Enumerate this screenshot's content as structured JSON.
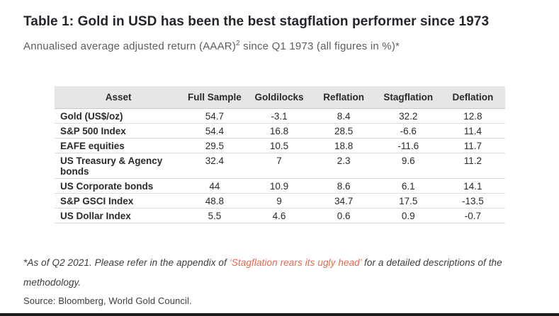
{
  "page": {
    "title": "Table 1: Gold in USD has been the best stagflation performer since 1973",
    "subtitle_pre": "Annualised average adjusted return (AAAR)",
    "subtitle_sup": "2",
    "subtitle_post": " since Q1 1973 (all figures in %)*",
    "footnote_pre": "*As of Q2 2021. Please refer in the appendix of ",
    "footnote_link": "‘Stagflation rears its ugly head’",
    "footnote_post": " for a detailed descriptions of the methodology.",
    "source": "Source: Bloomberg, World Gold Council."
  },
  "chart_data": {
    "type": "table",
    "title": "Table 1: Gold in USD has been the best stagflation performer since 1973",
    "subtitle": "Annualised average adjusted return (AAAR)2 since Q1 1973 (all figures in %)*",
    "columns": [
      "Asset",
      "Full Sample",
      "Goldilocks",
      "Reflation",
      "Stagflation",
      "Deflation"
    ],
    "rows": [
      {
        "asset": "Gold (US$/oz)",
        "values": [
          "54.7",
          "-3.1",
          "8.4",
          "32.2",
          "12.8"
        ]
      },
      {
        "asset": "S&P 500 Index",
        "values": [
          "54.4",
          "16.8",
          "28.5",
          "-6.6",
          "11.4"
        ]
      },
      {
        "asset": "EAFE equities",
        "values": [
          "29.5",
          "10.5",
          "18.8",
          "-11.6",
          "11.7"
        ]
      },
      {
        "asset": "US Treasury & Agency bonds",
        "values": [
          "32.4",
          "7",
          "2.3",
          "9.6",
          "11.2"
        ]
      },
      {
        "asset": "US Corporate bonds",
        "values": [
          "44",
          "10.9",
          "8.6",
          "6.1",
          "14.1"
        ]
      },
      {
        "asset": "S&P GSCI Index",
        "values": [
          "48.8",
          "9",
          "34.7",
          "17.5",
          "-13.5"
        ]
      },
      {
        "asset": "US Dollar Index",
        "values": [
          "5.5",
          "4.6",
          "0.6",
          "0.9",
          "-0.7"
        ]
      }
    ],
    "accent_colors": {
      "link": "#e0694b",
      "header_bg": "#e6e6e6"
    }
  }
}
